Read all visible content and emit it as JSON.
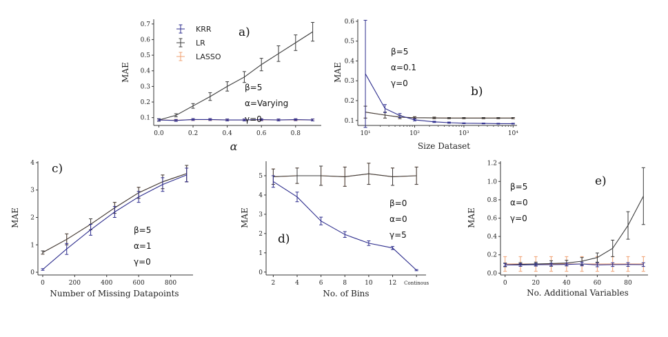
{
  "colors": {
    "KRR": "#2b2b8c",
    "LR": "#3a3a3a",
    "LASSO": "#f0a070"
  },
  "legend": [
    "KRR",
    "LR",
    "LASSO"
  ],
  "chart_data": [
    {
      "id": "a",
      "type": "line",
      "panel_label": "a)",
      "xlabel": "α",
      "ylabel": "MAE",
      "xlim": [
        -0.03,
        0.95
      ],
      "ylim": [
        0.05,
        0.73
      ],
      "xticks": [
        0,
        0.2,
        0.4,
        0.6,
        0.8
      ],
      "xtick_labels": [
        "0.0",
        "0.2",
        "0.4",
        "0.6",
        "0.8"
      ],
      "yticks": [
        0.1,
        0.2,
        0.3,
        0.4,
        0.5,
        0.6,
        0.7
      ],
      "ytick_labels": [
        "0.1",
        "0.2",
        "0.3",
        "0.4",
        "0.5",
        "0.6",
        "0.7"
      ],
      "annotations": [
        "β=5",
        "α=Varying",
        "γ=0"
      ],
      "x": [
        0,
        0.1,
        0.2,
        0.3,
        0.4,
        0.5,
        0.6,
        0.7,
        0.8,
        0.9
      ],
      "series": [
        {
          "name": "KRR",
          "values": [
            0.085,
            0.082,
            0.088,
            0.088,
            0.085,
            0.085,
            0.087,
            0.085,
            0.087,
            0.085
          ],
          "err": [
            0.006,
            0.006,
            0.006,
            0.006,
            0.006,
            0.006,
            0.006,
            0.006,
            0.006,
            0.006
          ]
        },
        {
          "name": "LR",
          "values": [
            0.085,
            0.115,
            0.175,
            0.235,
            0.3,
            0.36,
            0.44,
            0.51,
            0.58,
            0.65
          ],
          "err": [
            0.008,
            0.01,
            0.015,
            0.025,
            0.03,
            0.035,
            0.04,
            0.05,
            0.05,
            0.06
          ]
        },
        {
          "name": "LASSO",
          "values": [
            0.085,
            0.083,
            0.087,
            0.087,
            0.085,
            0.085,
            0.086,
            0.085,
            0.086,
            0.085
          ],
          "err": [
            0.006,
            0.006,
            0.006,
            0.006,
            0.006,
            0.006,
            0.006,
            0.006,
            0.006,
            0.006
          ]
        }
      ]
    },
    {
      "id": "b",
      "type": "line",
      "panel_label": "b)",
      "xscale": "log",
      "xlabel": "Size Dataset",
      "ylabel": "MAE",
      "xlim": [
        7,
        12000
      ],
      "ylim": [
        0.075,
        0.61
      ],
      "xticks": [
        10,
        100,
        1000,
        10000
      ],
      "xtick_labels": [
        "10¹",
        "10²",
        "10³",
        "10⁴"
      ],
      "yticks": [
        0.1,
        0.2,
        0.3,
        0.4,
        0.5,
        0.6
      ],
      "ytick_labels": [
        "0.1",
        "0.2",
        "0.3",
        "0.4",
        "0.5",
        "0.6"
      ],
      "annotations": [
        "β=5",
        "α=0.1",
        "γ=0"
      ],
      "x": [
        10,
        25,
        50,
        100,
        250,
        500,
        1000,
        2500,
        5000,
        10000
      ],
      "series": [
        {
          "name": "KRR",
          "values": [
            0.335,
            0.16,
            0.125,
            0.103,
            0.093,
            0.089,
            0.086,
            0.085,
            0.084,
            0.084
          ],
          "err": [
            0.27,
            0.02,
            0.01,
            0.005,
            0.003,
            0.003,
            0.002,
            0.002,
            0.002,
            0.002
          ]
        },
        {
          "name": "LR",
          "values": [
            0.142,
            0.127,
            0.117,
            0.114,
            0.113,
            0.112,
            0.112,
            0.112,
            0.112,
            0.112
          ],
          "err": [
            0.03,
            0.015,
            0.008,
            0.005,
            0.004,
            0.003,
            0.003,
            0.003,
            0.003,
            0.003
          ]
        },
        {
          "name": "LASSO",
          "values": [
            0.142,
            0.127,
            0.117,
            0.114,
            0.113,
            0.112,
            0.112,
            0.112,
            0.112,
            0.112
          ],
          "err": [
            0.03,
            0.015,
            0.008,
            0.005,
            0.004,
            0.003,
            0.003,
            0.003,
            0.003,
            0.003
          ]
        }
      ]
    },
    {
      "id": "c",
      "type": "line",
      "panel_label": "c)",
      "xlabel": "Number of Missing Datapoints",
      "ylabel": "MAE",
      "xlim": [
        -30,
        940
      ],
      "ylim": [
        -0.1,
        4.05
      ],
      "xticks": [
        0,
        200,
        400,
        600,
        800
      ],
      "xtick_labels": [
        "0",
        "200",
        "400",
        "600",
        "800"
      ],
      "yticks": [
        0,
        1,
        2,
        3,
        4
      ],
      "ytick_labels": [
        "0",
        "1",
        "2",
        "3",
        "4"
      ],
      "annotations": [
        "β=5",
        "α=1",
        "γ=0"
      ],
      "x": [
        0,
        150,
        300,
        450,
        600,
        750,
        900
      ],
      "series": [
        {
          "name": "KRR",
          "values": [
            0.1,
            0.85,
            1.55,
            2.2,
            2.75,
            3.2,
            3.55
          ],
          "err": [
            0.03,
            0.2,
            0.2,
            0.2,
            0.2,
            0.25,
            0.25
          ]
        },
        {
          "name": "LR",
          "values": [
            0.72,
            1.2,
            1.75,
            2.35,
            2.9,
            3.3,
            3.6
          ],
          "err": [
            0.06,
            0.2,
            0.2,
            0.2,
            0.2,
            0.25,
            0.3
          ]
        },
        {
          "name": "LASSO",
          "values": [
            0.72,
            1.2,
            1.75,
            2.35,
            2.9,
            3.3,
            3.6
          ],
          "err": [
            0.06,
            0.2,
            0.2,
            0.2,
            0.2,
            0.25,
            0.3
          ]
        }
      ]
    },
    {
      "id": "d",
      "type": "line",
      "panel_label": "d)",
      "xlabel": "No. of Bins",
      "ylabel": "MAE",
      "xlim": [
        1.4,
        14.8
      ],
      "ylim": [
        -0.15,
        5.75
      ],
      "xticks": [
        2,
        4,
        6,
        8,
        10,
        12,
        14
      ],
      "xtick_labels": [
        "2",
        "4",
        "6",
        "8",
        "10",
        "12",
        "Continous"
      ],
      "yticks": [
        0,
        1,
        2,
        3,
        4,
        5
      ],
      "ytick_labels": [
        "0",
        "1",
        "2",
        "3",
        "4",
        "5"
      ],
      "annotations": [
        "β=0",
        "α=0",
        "γ=5"
      ],
      "x": [
        2,
        4,
        6,
        8,
        10,
        12,
        14
      ],
      "series": [
        {
          "name": "KRR",
          "values": [
            4.7,
            3.9,
            2.65,
            1.95,
            1.5,
            1.25,
            0.1
          ],
          "err": [
            0.3,
            0.25,
            0.2,
            0.15,
            0.12,
            0.08,
            0.03
          ]
        },
        {
          "name": "LR",
          "values": [
            4.95,
            5.0,
            5.0,
            4.95,
            5.1,
            4.95,
            5.0
          ],
          "err": [
            0.4,
            0.4,
            0.5,
            0.5,
            0.55,
            0.45,
            0.45
          ]
        },
        {
          "name": "LASSO",
          "values": [
            4.95,
            5.0,
            5.0,
            4.95,
            5.1,
            4.95,
            5.0
          ],
          "err": [
            0.4,
            0.4,
            0.5,
            0.5,
            0.55,
            0.45,
            0.45
          ]
        }
      ]
    },
    {
      "id": "e",
      "type": "line",
      "panel_label": "e)",
      "xlabel": "No. Additional Variables",
      "ylabel": "MAE",
      "xlim": [
        -3,
        93
      ],
      "ylim": [
        -0.02,
        1.22
      ],
      "xticks": [
        0,
        20,
        40,
        60,
        80
      ],
      "xtick_labels": [
        "0",
        "20",
        "40",
        "60",
        "80"
      ],
      "yticks": [
        0,
        0.2,
        0.4,
        0.6,
        0.8,
        1.0,
        1.2
      ],
      "ytick_labels": [
        "0.0",
        "0.2",
        "0.4",
        "0.6",
        "0.8",
        "1.0",
        "1.2"
      ],
      "annotations": [
        "β=5",
        "α=0",
        "γ=0"
      ],
      "x": [
        0,
        10,
        20,
        30,
        40,
        50,
        60,
        70,
        80,
        90
      ],
      "series": [
        {
          "name": "KRR",
          "values": [
            0.09,
            0.09,
            0.092,
            0.093,
            0.095,
            0.1,
            0.09,
            0.093,
            0.094,
            0.093
          ],
          "err": [
            0.015,
            0.015,
            0.015,
            0.015,
            0.015,
            0.02,
            0.02,
            0.02,
            0.02,
            0.02
          ]
        },
        {
          "name": "LR",
          "values": [
            0.09,
            0.095,
            0.1,
            0.105,
            0.11,
            0.13,
            0.17,
            0.27,
            0.52,
            0.84
          ],
          "err": [
            0.02,
            0.02,
            0.02,
            0.03,
            0.03,
            0.04,
            0.05,
            0.09,
            0.15,
            0.31
          ]
        },
        {
          "name": "LASSO",
          "values": [
            0.1,
            0.1,
            0.1,
            0.1,
            0.1,
            0.1,
            0.1,
            0.1,
            0.1,
            0.1
          ],
          "err": [
            0.08,
            0.08,
            0.08,
            0.08,
            0.08,
            0.08,
            0.08,
            0.08,
            0.08,
            0.08
          ]
        }
      ]
    }
  ]
}
